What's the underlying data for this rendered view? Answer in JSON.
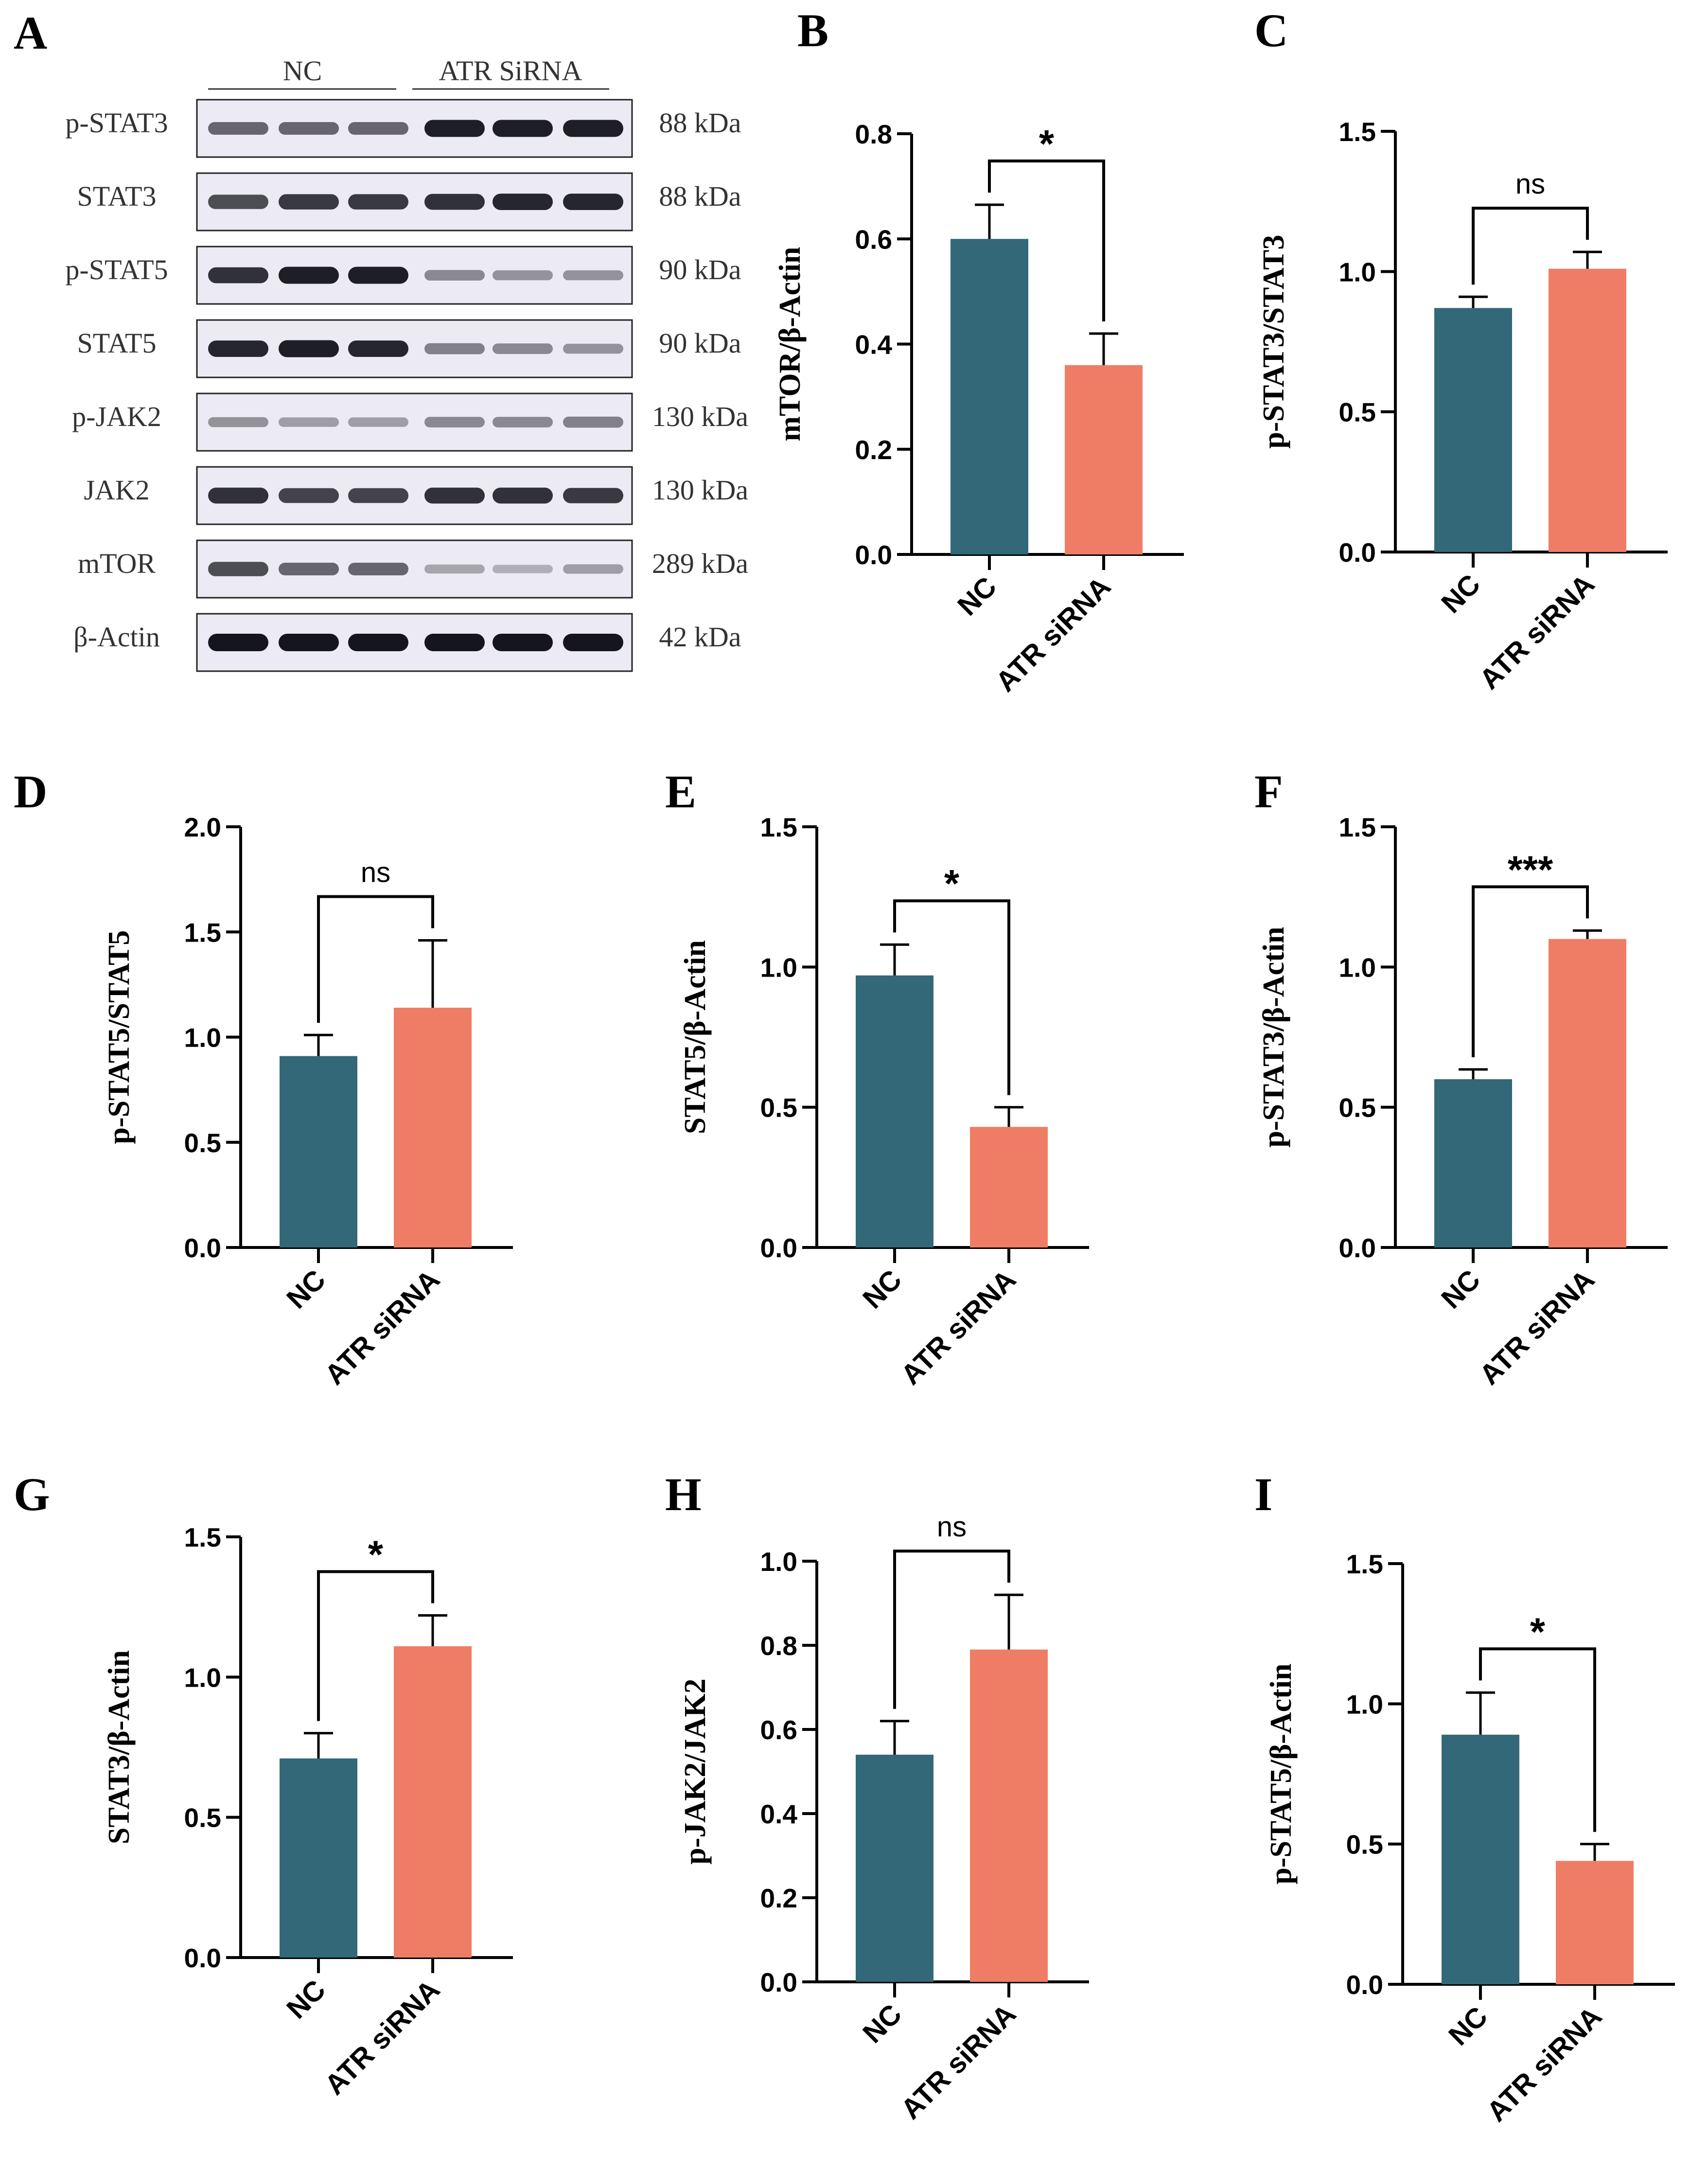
{
  "figure": {
    "panel_letters": [
      "A",
      "B",
      "C",
      "D",
      "E",
      "F",
      "G",
      "H",
      "I"
    ],
    "colors": {
      "nc": "#326877",
      "atr": "#EF7D66",
      "axis": "#000000",
      "blot_bg": "#ECEAF2",
      "blot_band": "#15151D"
    }
  },
  "western_blot": {
    "group_labels": [
      "NC",
      "ATR SiRNA"
    ],
    "rows": [
      {
        "protein": "p-STAT3",
        "kda": "88 kDa",
        "band_intensity": [
          0.55,
          0.55,
          0.55,
          0.95,
          0.95,
          0.95
        ]
      },
      {
        "protein": "STAT3",
        "kda": "88 kDa",
        "band_intensity": [
          0.7,
          0.8,
          0.8,
          0.85,
          0.9,
          0.9
        ]
      },
      {
        "protein": "p-STAT5",
        "kda": "90 kDa",
        "band_intensity": [
          0.85,
          0.95,
          0.95,
          0.35,
          0.3,
          0.3
        ]
      },
      {
        "protein": "STAT5",
        "kda": "90 kDa",
        "band_intensity": [
          0.9,
          0.95,
          0.9,
          0.4,
          0.35,
          0.3
        ]
      },
      {
        "protein": "p-JAK2",
        "kda": "130 kDa",
        "band_intensity": [
          0.3,
          0.25,
          0.25,
          0.35,
          0.35,
          0.4
        ]
      },
      {
        "protein": "JAK2",
        "kda": "130 kDa",
        "band_intensity": [
          0.85,
          0.75,
          0.75,
          0.85,
          0.85,
          0.8
        ]
      },
      {
        "protein": "mTOR",
        "kda": "289 kDa",
        "band_intensity": [
          0.7,
          0.55,
          0.55,
          0.2,
          0.15,
          0.25
        ]
      },
      {
        "protein": "β-Actin",
        "kda": "42 kDa",
        "band_intensity": [
          1.0,
          1.0,
          1.0,
          1.0,
          1.0,
          1.0
        ]
      }
    ]
  },
  "chart_data": [
    {
      "panel": "B",
      "type": "bar",
      "categories": [
        "NC",
        "ATR siRNA"
      ],
      "values": [
        0.6,
        0.36
      ],
      "errors": [
        0.065,
        0.06
      ],
      "ylabel": "mTOR/β-Actin",
      "ylim": [
        0,
        0.8
      ],
      "yticks": [
        "0.0",
        "0.2",
        "0.4",
        "0.6",
        "0.8"
      ],
      "significance": "*"
    },
    {
      "panel": "C",
      "type": "bar",
      "categories": [
        "NC",
        "ATR siRNA"
      ],
      "values": [
        0.87,
        1.01
      ],
      "errors": [
        0.04,
        0.06
      ],
      "ylabel": "p-STAT3/STAT3",
      "ylim": [
        0,
        1.5
      ],
      "yticks": [
        "0.0",
        "0.5",
        "1.0",
        "1.5"
      ],
      "significance": "ns"
    },
    {
      "panel": "D",
      "type": "bar",
      "categories": [
        "NC",
        "ATR siRNA"
      ],
      "values": [
        0.91,
        1.14
      ],
      "errors": [
        0.1,
        0.32
      ],
      "ylabel": "p-STAT5/STAT5",
      "ylim": [
        0,
        2.0
      ],
      "yticks": [
        "0.0",
        "0.5",
        "1.0",
        "1.5",
        "2.0"
      ],
      "significance": "ns"
    },
    {
      "panel": "E",
      "type": "bar",
      "categories": [
        "NC",
        "ATR siRNA"
      ],
      "values": [
        0.97,
        0.43
      ],
      "errors": [
        0.11,
        0.07
      ],
      "ylabel": "STAT5/β-Actin",
      "ylim": [
        0,
        1.5
      ],
      "yticks": [
        "0.0",
        "0.5",
        "1.0",
        "1.5"
      ],
      "significance": "*"
    },
    {
      "panel": "F",
      "type": "bar",
      "categories": [
        "NC",
        "ATR siRNA"
      ],
      "values": [
        0.6,
        1.1
      ],
      "errors": [
        0.035,
        0.03
      ],
      "ylabel": "p-STAT3/β-Actin",
      "ylim": [
        0,
        1.5
      ],
      "yticks": [
        "0.0",
        "0.5",
        "1.0",
        "1.5"
      ],
      "significance": "***"
    },
    {
      "panel": "G",
      "type": "bar",
      "categories": [
        "NC",
        "ATR siRNA"
      ],
      "values": [
        0.71,
        1.11
      ],
      "errors": [
        0.09,
        0.11
      ],
      "ylabel": "STAT3/β-Actin",
      "ylim": [
        0,
        1.5
      ],
      "yticks": [
        "0.0",
        "0.5",
        "1.0",
        "1.5"
      ],
      "significance": "*"
    },
    {
      "panel": "H",
      "type": "bar",
      "categories": [
        "NC",
        "ATR siRNA"
      ],
      "values": [
        0.54,
        0.79
      ],
      "errors": [
        0.08,
        0.13
      ],
      "ylabel": "p-JAK2/JAK2",
      "ylim": [
        0,
        1.0
      ],
      "yticks": [
        "0.0",
        "0.2",
        "0.4",
        "0.6",
        "0.8",
        "1.0"
      ],
      "significance": "ns"
    },
    {
      "panel": "I",
      "type": "bar",
      "categories": [
        "NC",
        "ATR siRNA"
      ],
      "values": [
        0.89,
        0.44
      ],
      "errors": [
        0.15,
        0.06
      ],
      "ylabel": "p-STAT5/β-Actin",
      "ylim": [
        0,
        1.5
      ],
      "yticks": [
        "0.0",
        "0.5",
        "1.0",
        "1.5"
      ],
      "significance": "*"
    }
  ]
}
